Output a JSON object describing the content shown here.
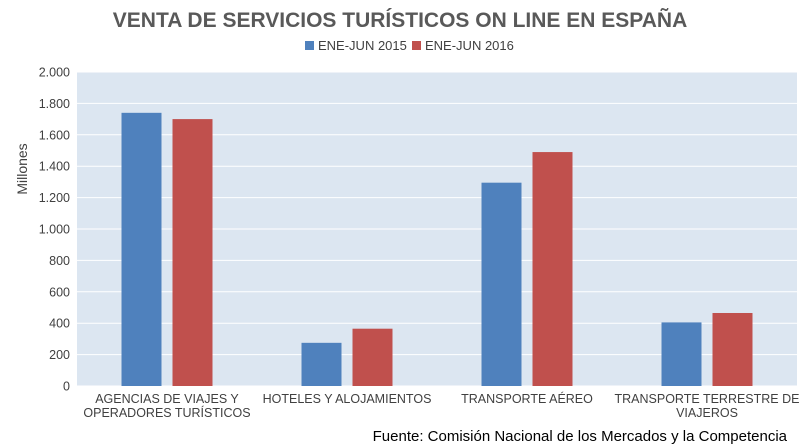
{
  "chart_data": {
    "type": "bar",
    "title": "VENTA DE SERVICIOS TURÍSTICOS ON LINE EN ESPAÑA",
    "ylabel": "Millones",
    "xlabel": "",
    "ylim": [
      0,
      2000
    ],
    "yticks": [
      0,
      200,
      400,
      600,
      800,
      1000,
      1200,
      1400,
      1600,
      1800,
      2000
    ],
    "ytick_labels": [
      "0",
      "200",
      "400",
      "600",
      "800",
      "1.000",
      "1.200",
      "1.400",
      "1.600",
      "1.800",
      "2.000"
    ],
    "categories": [
      [
        "AGENCIAS DE VIAJES Y",
        "OPERADORES TURÍSTICOS"
      ],
      [
        "HOTELES  Y ALOJAMIENTOS"
      ],
      [
        "TRANSPORTE AÉREO"
      ],
      [
        "TRANSPORTE TERRESTRE DE",
        "VIAJEROS"
      ]
    ],
    "series": [
      {
        "name": "ENE-JUN 2015",
        "color": "#4f81bd",
        "values": [
          1740,
          275,
          1295,
          405
        ]
      },
      {
        "name": "ENE-JUN 2016",
        "color": "#c0504d",
        "values": [
          1700,
          365,
          1490,
          465
        ]
      }
    ],
    "grid": true,
    "legend_position": "top",
    "plot_background": "#dce6f1"
  },
  "source": "Fuente: Comisión Nacional de los Mercados y la Competencia"
}
